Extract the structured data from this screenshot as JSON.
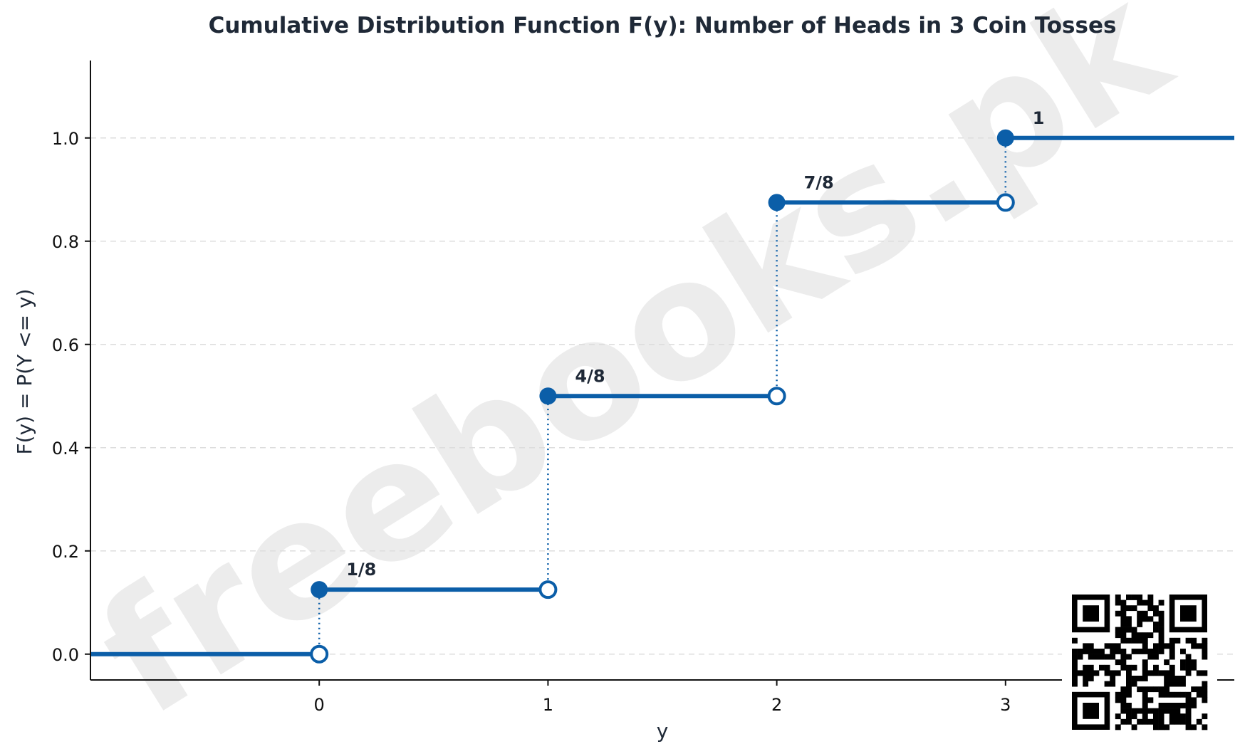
{
  "watermark": "freebooks.pk",
  "chart_data": {
    "type": "line",
    "subtype": "step",
    "title": "Cumulative Distribution Function F(y): Number of Heads in 3 Coin Tosses",
    "xlabel": "y",
    "ylabel": "F(y) = P(Y <= y)",
    "xlim": [
      -1,
      4
    ],
    "ylim": [
      -0.05,
      1.15
    ],
    "x_ticks": [
      0,
      1,
      2,
      3
    ],
    "y_ticks": [
      0.0,
      0.2,
      0.4,
      0.6,
      0.8,
      1.0
    ],
    "y_tick_labels": [
      "0.0",
      "0.2",
      "0.4",
      "0.6",
      "0.8",
      "1.0"
    ],
    "grid": "y-dashed",
    "steps": [
      {
        "x_start": -1,
        "x_end": 0,
        "y": 0
      },
      {
        "x_start": 0,
        "x_end": 1,
        "y": 0.125,
        "label": "1/8"
      },
      {
        "x_start": 1,
        "x_end": 2,
        "y": 0.5,
        "label": "4/8"
      },
      {
        "x_start": 2,
        "x_end": 3,
        "y": 0.875,
        "label": "7/8"
      },
      {
        "x_start": 3,
        "x_end": 4,
        "y": 1.0,
        "label": "1"
      }
    ],
    "jumps": [
      {
        "x": 0,
        "from": 0,
        "to": 0.125
      },
      {
        "x": 1,
        "from": 0.125,
        "to": 0.5
      },
      {
        "x": 2,
        "from": 0.5,
        "to": 0.875
      },
      {
        "x": 3,
        "from": 0.875,
        "to": 1.0
      }
    ],
    "colors": {
      "line": "#0b5ea8",
      "text": "#1f2937",
      "grid": "#dddddd",
      "axis": "#111111"
    }
  }
}
